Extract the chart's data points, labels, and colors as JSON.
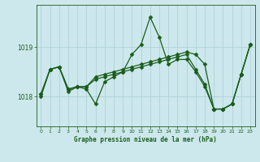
{
  "title": "Graphe pression niveau de la mer (hPa)",
  "background_color": "#cce8ec",
  "grid_color": "#aacdd4",
  "line_color": "#1a5c1a",
  "marker_color": "#1a5c1a",
  "xlim": [
    -0.5,
    23.5
  ],
  "ylim": [
    1017.4,
    1019.85
  ],
  "yticks": [
    1018,
    1019
  ],
  "xticks": [
    0,
    1,
    2,
    3,
    4,
    5,
    6,
    7,
    8,
    9,
    10,
    11,
    12,
    13,
    14,
    15,
    16,
    17,
    18,
    19,
    20,
    21,
    22,
    23
  ],
  "s1": [
    1018.0,
    1018.55,
    1018.6,
    1018.1,
    1018.2,
    1018.15,
    1017.85,
    1018.3,
    1018.4,
    1018.5,
    1018.85,
    1019.05,
    1019.6,
    1019.2,
    1018.65,
    1018.75,
    1018.75,
    1018.5,
    1018.2,
    1017.75,
    1017.75,
    1017.85,
    1018.45,
    1019.05
  ],
  "s2": [
    1018.05,
    1018.55,
    1018.6,
    1018.15,
    1018.2,
    1018.2,
    1018.35,
    1018.4,
    1018.45,
    1018.5,
    1018.55,
    1018.6,
    1018.65,
    1018.7,
    1018.75,
    1018.8,
    1018.85,
    1018.55,
    1018.25,
    1017.75,
    1017.75,
    1017.85,
    1018.45,
    1019.05
  ],
  "s3": [
    1018.05,
    1018.55,
    1018.6,
    1018.15,
    1018.2,
    1018.2,
    1018.4,
    1018.45,
    1018.5,
    1018.55,
    1018.6,
    1018.65,
    1018.7,
    1018.75,
    1018.8,
    1018.85,
    1018.9,
    1018.85,
    1018.65,
    1017.75,
    1017.75,
    1017.85,
    1018.45,
    1019.05
  ]
}
